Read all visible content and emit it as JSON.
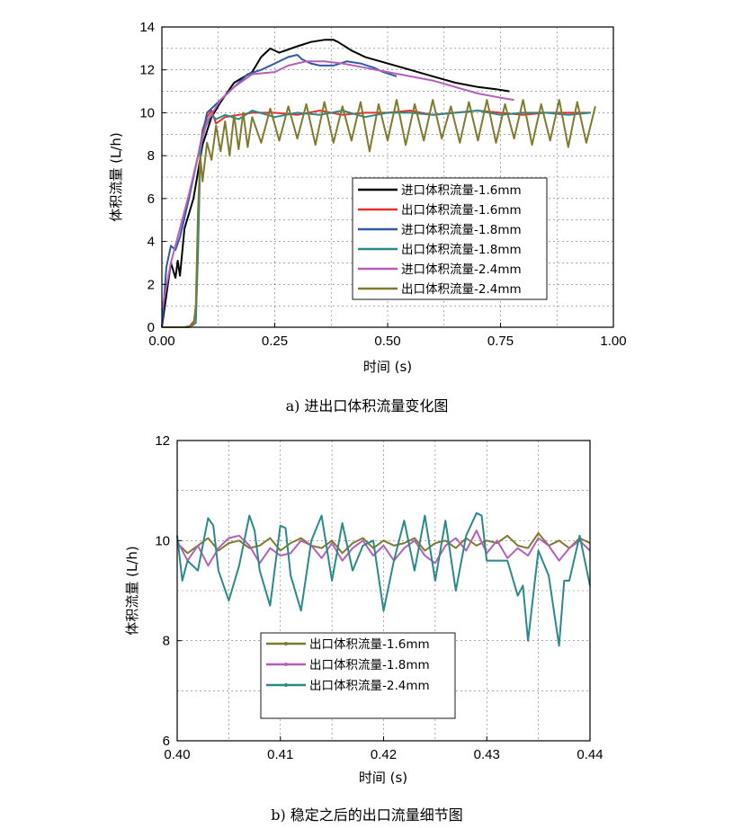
{
  "chart_data": [
    {
      "type": "line",
      "caption": "a) 进出口体积流量变化图",
      "xlabel": "时间 (s)",
      "ylabel": "体积流量 (L/h)",
      "xlim": [
        0,
        1.0
      ],
      "ylim": [
        0,
        14
      ],
      "xticks": [
        "0.00",
        "0.25",
        "0.50",
        "0.75",
        "1.00"
      ],
      "yticks": [
        "0",
        "2",
        "4",
        "6",
        "8",
        "10",
        "12",
        "14"
      ],
      "grid": true,
      "legend_position": "right-middle",
      "series": [
        {
          "name": "进口体积流量-1.6mm",
          "color": "#000000",
          "x": [
            0.0,
            0.02,
            0.03,
            0.035,
            0.04,
            0.05,
            0.07,
            0.09,
            0.11,
            0.13,
            0.16,
            0.2,
            0.22,
            0.24,
            0.26,
            0.3,
            0.33,
            0.36,
            0.38,
            0.39,
            0.42,
            0.45,
            0.5,
            0.55,
            0.6,
            0.65,
            0.7,
            0.74,
            0.77
          ],
          "y": [
            0.0,
            3.0,
            2.3,
            3.1,
            2.4,
            4.6,
            6.0,
            8.5,
            9.8,
            10.5,
            11.4,
            11.9,
            12.6,
            13.0,
            12.8,
            13.1,
            13.3,
            13.4,
            13.4,
            13.3,
            12.9,
            12.6,
            12.3,
            12.0,
            11.7,
            11.4,
            11.2,
            11.1,
            11.0
          ]
        },
        {
          "name": "出口体积流量-1.6mm",
          "color": "#e8312a",
          "x": [
            0.0,
            0.06,
            0.075,
            0.08,
            0.085,
            0.09,
            0.1,
            0.11,
            0.12,
            0.14,
            0.17,
            0.2,
            0.25,
            0.3,
            0.35,
            0.4,
            0.45,
            0.5,
            0.55,
            0.6,
            0.65,
            0.7,
            0.75,
            0.8,
            0.85,
            0.9,
            0.95
          ],
          "y": [
            0.0,
            0.0,
            0.4,
            4.0,
            8.3,
            9.2,
            9.8,
            10.1,
            9.5,
            9.8,
            9.9,
            10.0,
            10.0,
            9.9,
            10.1,
            9.9,
            10.0,
            10.0,
            10.1,
            9.9,
            10.0,
            10.1,
            10.0,
            9.9,
            10.0,
            10.0,
            10.0
          ]
        },
        {
          "name": "进口体积流量-1.8mm",
          "color": "#2f5aa8",
          "x": [
            0.0,
            0.01,
            0.02,
            0.03,
            0.04,
            0.06,
            0.08,
            0.1,
            0.13,
            0.16,
            0.19,
            0.22,
            0.25,
            0.28,
            0.3,
            0.31,
            0.33,
            0.35,
            0.38,
            0.41,
            0.44,
            0.47,
            0.49,
            0.52
          ],
          "y": [
            0.0,
            2.8,
            3.8,
            3.6,
            4.2,
            6.0,
            8.0,
            10.0,
            10.6,
            11.2,
            11.8,
            12.0,
            12.3,
            12.6,
            12.7,
            12.5,
            12.3,
            12.2,
            12.2,
            12.4,
            12.3,
            12.1,
            11.9,
            11.7
          ]
        },
        {
          "name": "出口体积流量-1.8mm",
          "color": "#2a8a8a",
          "x": [
            0.0,
            0.06,
            0.075,
            0.08,
            0.085,
            0.09,
            0.1,
            0.11,
            0.12,
            0.14,
            0.17,
            0.2,
            0.25,
            0.3,
            0.35,
            0.4,
            0.45,
            0.5,
            0.55,
            0.6,
            0.65,
            0.7,
            0.75,
            0.8,
            0.85,
            0.9,
            0.95
          ],
          "y": [
            0.0,
            0.0,
            0.2,
            3.5,
            8.0,
            9.0,
            9.5,
            9.9,
            9.7,
            9.9,
            9.7,
            10.1,
            9.8,
            10.0,
            9.9,
            10.1,
            9.8,
            10.0,
            10.0,
            9.9,
            10.0,
            10.1,
            9.9,
            10.0,
            10.0,
            9.9,
            10.0
          ]
        },
        {
          "name": "进口体积流量-2.4mm",
          "color": "#b45fb8",
          "x": [
            0.0,
            0.02,
            0.04,
            0.06,
            0.08,
            0.1,
            0.13,
            0.16,
            0.2,
            0.25,
            0.28,
            0.32,
            0.36,
            0.4,
            0.45,
            0.5,
            0.55,
            0.6,
            0.65,
            0.7,
            0.75,
            0.78
          ],
          "y": [
            0.8,
            3.0,
            4.6,
            6.2,
            8.0,
            9.6,
            10.6,
            11.2,
            11.8,
            11.9,
            12.2,
            12.4,
            12.4,
            12.3,
            12.1,
            11.9,
            11.7,
            11.5,
            11.2,
            10.9,
            10.7,
            10.6
          ]
        },
        {
          "name": "出口体积流量-2.4mm",
          "color": "#7f7a2e",
          "x": [
            0.0,
            0.05,
            0.07,
            0.075,
            0.08,
            0.085,
            0.09,
            0.1,
            0.11,
            0.12,
            0.13,
            0.14,
            0.15,
            0.16,
            0.17,
            0.18,
            0.19,
            0.2,
            0.22,
            0.24,
            0.26,
            0.28,
            0.3,
            0.32,
            0.34,
            0.36,
            0.38,
            0.4,
            0.42,
            0.44,
            0.46,
            0.48,
            0.5,
            0.52,
            0.54,
            0.56,
            0.58,
            0.6,
            0.62,
            0.64,
            0.66,
            0.68,
            0.7,
            0.72,
            0.74,
            0.76,
            0.78,
            0.8,
            0.82,
            0.84,
            0.86,
            0.88,
            0.9,
            0.92,
            0.94,
            0.96
          ],
          "y": [
            0.0,
            0.0,
            0.1,
            1.0,
            5.5,
            8.0,
            6.8,
            8.6,
            7.8,
            9.4,
            8.2,
            9.6,
            8.0,
            9.9,
            8.3,
            10.0,
            8.4,
            9.8,
            8.6,
            10.2,
            8.7,
            10.3,
            8.8,
            10.4,
            8.5,
            10.5,
            8.6,
            10.3,
            8.7,
            10.5,
            8.2,
            10.4,
            8.7,
            10.6,
            8.5,
            10.4,
            8.7,
            10.6,
            8.8,
            10.3,
            8.6,
            10.5,
            8.7,
            10.6,
            8.6,
            10.4,
            8.8,
            10.6,
            8.5,
            10.4,
            8.7,
            10.6,
            8.4,
            10.5,
            8.6,
            10.3
          ]
        }
      ]
    },
    {
      "type": "line",
      "caption": "b) 稳定之后的出口流量细节图",
      "xlabel": "时间 (s)",
      "ylabel": "体积流量 (L/h)",
      "xlim": [
        0.4,
        0.44
      ],
      "ylim": [
        6,
        12
      ],
      "xticks": [
        "0.40",
        "0.41",
        "0.42",
        "0.43",
        "0.44"
      ],
      "yticks": [
        "6",
        "8",
        "10",
        "12"
      ],
      "grid": true,
      "legend_position": "bottom-center",
      "series": [
        {
          "name": "出口体积流量-1.6mm",
          "color": "#7f7a2e",
          "x": [
            0.4,
            0.401,
            0.402,
            0.403,
            0.404,
            0.405,
            0.406,
            0.407,
            0.408,
            0.409,
            0.41,
            0.411,
            0.412,
            0.413,
            0.414,
            0.415,
            0.416,
            0.417,
            0.418,
            0.419,
            0.42,
            0.421,
            0.422,
            0.423,
            0.424,
            0.425,
            0.426,
            0.427,
            0.428,
            0.429,
            0.43,
            0.431,
            0.432,
            0.433,
            0.434,
            0.435,
            0.436,
            0.437,
            0.438,
            0.439,
            0.44
          ],
          "y": [
            9.95,
            9.75,
            9.9,
            10.05,
            9.8,
            9.95,
            10.0,
            9.85,
            9.9,
            10.05,
            9.8,
            9.95,
            10.05,
            9.9,
            9.85,
            10.0,
            9.75,
            9.95,
            10.05,
            9.85,
            10.0,
            9.9,
            9.95,
            10.05,
            9.8,
            9.95,
            10.0,
            9.85,
            10.05,
            9.9,
            10.0,
            9.95,
            10.1,
            9.9,
            9.85,
            10.15,
            9.9,
            10.0,
            9.85,
            10.05,
            9.95
          ]
        },
        {
          "name": "出口体积流量-1.8mm",
          "color": "#b45fb8",
          "x": [
            0.4,
            0.401,
            0.402,
            0.403,
            0.404,
            0.405,
            0.406,
            0.407,
            0.408,
            0.409,
            0.41,
            0.411,
            0.412,
            0.413,
            0.414,
            0.415,
            0.416,
            0.417,
            0.418,
            0.419,
            0.42,
            0.421,
            0.422,
            0.423,
            0.424,
            0.425,
            0.426,
            0.427,
            0.428,
            0.429,
            0.43,
            0.431,
            0.432,
            0.433,
            0.434,
            0.435,
            0.436,
            0.437,
            0.438,
            0.439,
            0.44
          ],
          "y": [
            10.0,
            9.6,
            9.9,
            9.5,
            9.85,
            10.05,
            10.1,
            9.9,
            9.55,
            9.85,
            9.7,
            9.75,
            10.0,
            9.9,
            9.65,
            9.95,
            9.6,
            9.85,
            10.0,
            9.7,
            9.9,
            9.6,
            9.85,
            10.0,
            9.7,
            9.55,
            9.9,
            10.05,
            9.8,
            10.2,
            9.75,
            10.0,
            9.65,
            9.85,
            9.7,
            10.05,
            9.9,
            9.6,
            9.85,
            10.0,
            9.8
          ]
        },
        {
          "name": "出口体积流量-2.4mm",
          "color": "#2a8a8a",
          "x": [
            0.4,
            0.4005,
            0.401,
            0.402,
            0.403,
            0.4035,
            0.404,
            0.405,
            0.406,
            0.407,
            0.4075,
            0.408,
            0.409,
            0.41,
            0.4105,
            0.411,
            0.412,
            0.413,
            0.414,
            0.415,
            0.416,
            0.417,
            0.418,
            0.419,
            0.42,
            0.421,
            0.422,
            0.423,
            0.424,
            0.425,
            0.426,
            0.427,
            0.428,
            0.429,
            0.4295,
            0.43,
            0.431,
            0.432,
            0.433,
            0.4335,
            0.434,
            0.435,
            0.436,
            0.437,
            0.4375,
            0.438,
            0.439,
            0.44
          ],
          "y": [
            10.1,
            9.2,
            9.6,
            9.4,
            10.45,
            10.3,
            9.4,
            8.8,
            9.5,
            10.5,
            10.2,
            9.4,
            8.7,
            10.3,
            10.25,
            9.3,
            8.6,
            10.0,
            10.5,
            9.2,
            10.35,
            9.4,
            9.9,
            10.0,
            8.6,
            9.6,
            10.4,
            9.4,
            10.5,
            9.2,
            10.4,
            9.0,
            10.1,
            10.55,
            10.5,
            9.6,
            9.6,
            9.6,
            8.9,
            9.1,
            8.0,
            9.8,
            9.3,
            7.9,
            9.2,
            9.2,
            10.1,
            9.1
          ]
        }
      ]
    }
  ]
}
